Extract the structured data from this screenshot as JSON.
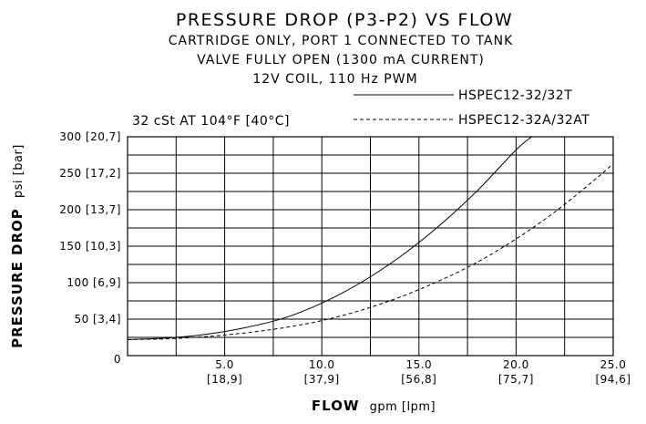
{
  "chart_data": {
    "type": "line",
    "title": "PRESSURE DROP (P3-P2) VS FLOW",
    "subtitle_lines": [
      "CARTRIDGE ONLY, PORT 1 CONNECTED TO TANK",
      "VALVE FULLY OPEN (1300 mA CURRENT)",
      "12V COIL, 110 Hz PWM"
    ],
    "annotation": "32 cSt AT 104°F [40°C]",
    "xlabel_bold": "FLOW",
    "xlabel_unit": "gpm [lpm]",
    "ylabel_bold": "PRESSURE DROP",
    "ylabel_unit": "psi [bar]",
    "xlim": [
      0,
      25
    ],
    "ylim": [
      0,
      300
    ],
    "grid": true,
    "legend_position": "top-right",
    "x_ticks": [
      {
        "value": 5,
        "primary": "5.0",
        "secondary": "[18,9]"
      },
      {
        "value": 10,
        "primary": "10.0",
        "secondary": "[37,9]"
      },
      {
        "value": 15,
        "primary": "15.0",
        "secondary": "[56,8]"
      },
      {
        "value": 20,
        "primary": "20.0",
        "secondary": "[75,7]"
      },
      {
        "value": 25,
        "primary": "25.0",
        "secondary": "[94,6]"
      }
    ],
    "y_ticks": [
      {
        "value": 0,
        "label": "0"
      },
      {
        "value": 50,
        "label": "50 [3,4]"
      },
      {
        "value": 100,
        "label": "100 [6,9]"
      },
      {
        "value": 150,
        "label": "150 [10,3]"
      },
      {
        "value": 200,
        "label": "200 [13,7]"
      },
      {
        "value": 250,
        "label": "250 [17,2]"
      },
      {
        "value": 300,
        "label": "300 [20,7]"
      }
    ],
    "series": [
      {
        "name": "HSPEC12-32/32T",
        "style": "solid",
        "x": [
          0,
          2,
          4,
          6,
          8,
          10,
          12,
          14,
          16,
          18,
          20,
          20.8
        ],
        "y": [
          22,
          24,
          29,
          38,
          51,
          72,
          100,
          135,
          177,
          226,
          282,
          300
        ]
      },
      {
        "name": "HSPEC12-32A/32AT",
        "style": "dashed",
        "x": [
          0,
          2,
          4,
          6,
          8,
          10,
          12,
          14,
          16,
          18,
          20,
          22,
          24,
          25
        ],
        "y": [
          22,
          23,
          26,
          31,
          38,
          48,
          62,
          80,
          102,
          128,
          160,
          197,
          240,
          263
        ]
      }
    ]
  }
}
